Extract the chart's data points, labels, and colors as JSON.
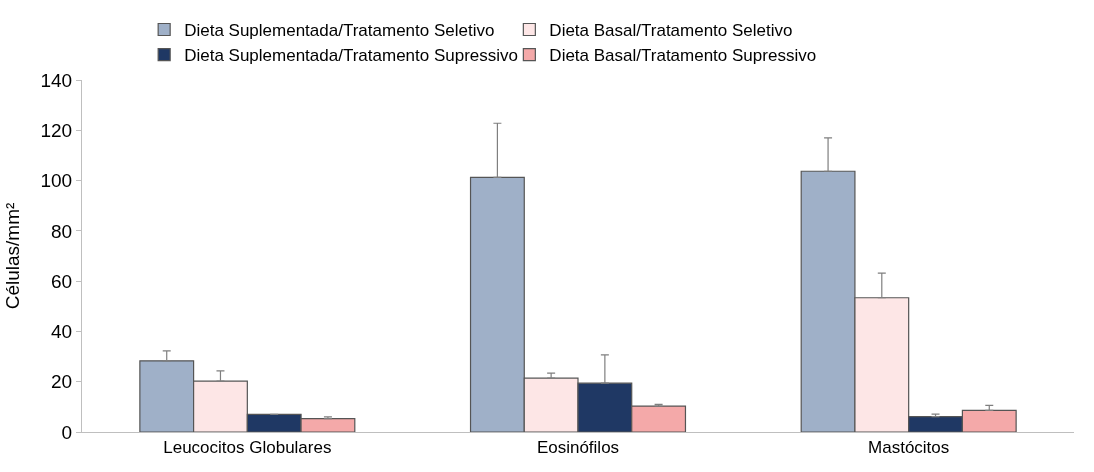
{
  "chart_data": {
    "type": "bar",
    "ylabel": "Células/mm²",
    "categories": [
      "Leucocitos Globulares",
      "Eosinófilos",
      "Mastócitos"
    ],
    "series": [
      {
        "name": "Dieta Suplementada/Tratamento Seletivo",
        "color": "#9fb0c8",
        "values": [
          28.3,
          101.3,
          103.7
        ],
        "errors": [
          [
            28.3,
            32.3
          ],
          [
            101.3,
            122.8
          ],
          [
            103.7,
            117.0
          ]
        ]
      },
      {
        "name": "Dieta Basal/Tratamento Seletivo",
        "color": "#fde6e6",
        "values": [
          20.2,
          21.4,
          53.4
        ],
        "errors": [
          [
            20.2,
            24.3
          ],
          [
            21.4,
            23.4
          ],
          [
            53.4,
            63.2
          ]
        ]
      },
      {
        "name": "Dieta Suplementada/Tratamento Supressivo",
        "color": "#1f3864",
        "values": [
          7.0,
          19.4,
          6.1
        ],
        "errors": [
          null,
          [
            19.4,
            30.7
          ],
          [
            6.1,
            7.1
          ]
        ]
      },
      {
        "name": "Dieta Basal/Tratamento Supressivo",
        "color": "#f4a9a9",
        "values": [
          5.3,
          10.3,
          8.6
        ],
        "errors": [
          [
            5.3,
            6.0
          ],
          [
            10.3,
            11.0
          ],
          [
            8.6,
            10.6
          ]
        ]
      }
    ],
    "ylim": [
      0,
      140
    ],
    "yticks": [
      0,
      20,
      40,
      60,
      80,
      100,
      120,
      140
    ],
    "grid": false,
    "legend": "top"
  }
}
